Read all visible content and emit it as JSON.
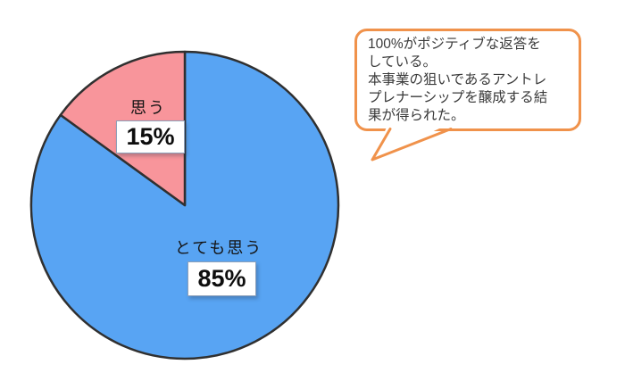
{
  "figure": {
    "background": "#ffffff"
  },
  "chart_data": {
    "type": "pie",
    "title": "",
    "legend_position": "none",
    "start_angle_deg": -90,
    "direction": "clockwise",
    "outline_color": "#303030",
    "categories": [
      "とても思う",
      "思う"
    ],
    "values": [
      85,
      15
    ],
    "slices": [
      {
        "label": "とても思う",
        "value": 85,
        "percent_label": "85%",
        "color": "#58a4f3"
      },
      {
        "label": "思う",
        "value": 15,
        "percent_label": "15%",
        "color": "#f8959b"
      }
    ]
  },
  "callout": {
    "text": "100%がポジティブな返答を\nしている。\n本事業の狙いであるアントレ\nプレナーシップを醸成する結\n果が得られた。",
    "border_color": "#f0924b",
    "fill": "#ffffff",
    "text_color": "#3a3a3a"
  }
}
